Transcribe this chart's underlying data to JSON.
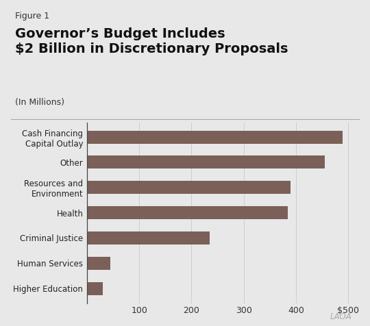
{
  "categories": [
    "Higher Education",
    "Human Services",
    "Criminal Justice",
    "Health",
    "Resources and\nEnvironment",
    "Other",
    "Cash Financing\nCapital Outlay"
  ],
  "values": [
    30,
    45,
    235,
    385,
    390,
    455,
    490
  ],
  "bar_color": "#7a6058",
  "background_color": "#e8e8e8",
  "figure_label": "Figure 1",
  "title_line1": "Governor’s Budget Includes",
  "title_line2": "$2 Billion in Discretionary Proposals",
  "subtitle": "(In Millions)",
  "xlim": [
    0,
    510
  ],
  "xticks": [
    0,
    100,
    200,
    300,
    400,
    500
  ],
  "xtick_labels": [
    "",
    "100",
    "200",
    "300",
    "400",
    "$500"
  ],
  "title_fontsize": 14,
  "subtitle_fontsize": 9,
  "figure_label_fontsize": 9,
  "tick_label_fontsize": 9,
  "category_fontsize": 8.5,
  "logo_text": "LAOÂ"
}
